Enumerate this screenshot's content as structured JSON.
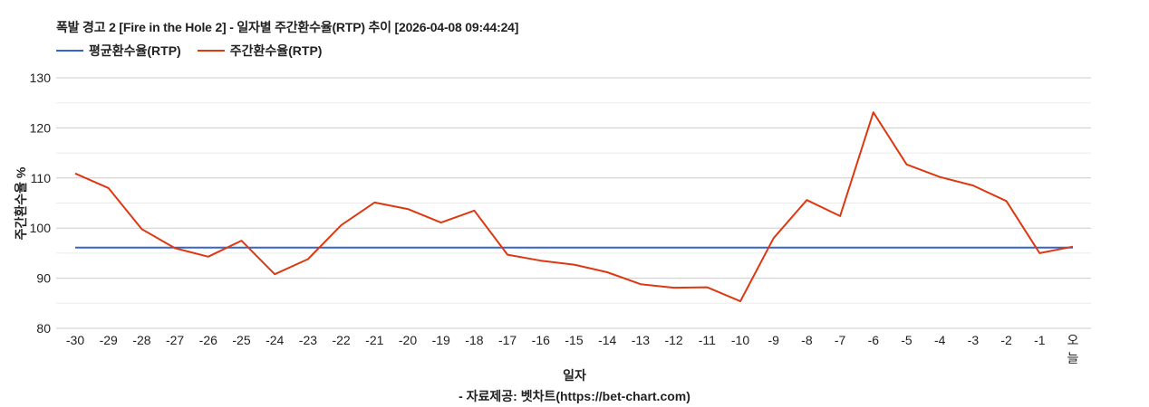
{
  "title": "폭발 경고 2 [Fire in the Hole 2] - 일자별 주간환수율(RTP) 추이 [2026-04-08 09:44:24]",
  "legend": [
    {
      "label": "평균환수율(RTP)",
      "color": "#3366cc"
    },
    {
      "label": "주간환수율(RTP)",
      "color": "#dc3912"
    }
  ],
  "axes": {
    "xlabel": "일자",
    "ylabel": "주간환수율 %",
    "source": "- 자료제공: 벳차트(https://bet-chart.com)"
  },
  "chart_data": {
    "type": "line",
    "title": "폭발 경고 2 [Fire in the Hole 2] - 일자별 주간환수율(RTP) 추이 [2026-04-08 09:44:24]",
    "xlabel": "일자",
    "ylabel": "주간환수율 %",
    "ylim": [
      80,
      130
    ],
    "yticks": [
      80,
      90,
      100,
      110,
      120,
      130
    ],
    "grid": true,
    "legend_position": "top",
    "categories": [
      "-30",
      "-29",
      "-28",
      "-27",
      "-26",
      "-25",
      "-24",
      "-23",
      "-22",
      "-21",
      "-20",
      "-19",
      "-18",
      "-17",
      "-16",
      "-15",
      "-14",
      "-13",
      "-12",
      "-11",
      "-10",
      "-9",
      "-8",
      "-7",
      "-6",
      "-5",
      "-4",
      "-3",
      "-2",
      "-1",
      "오늘"
    ],
    "series": [
      {
        "name": "평균환수율(RTP)",
        "color": "#3366cc",
        "values": [
          96.1,
          96.1,
          96.1,
          96.1,
          96.1,
          96.1,
          96.1,
          96.1,
          96.1,
          96.1,
          96.1,
          96.1,
          96.1,
          96.1,
          96.1,
          96.1,
          96.1,
          96.1,
          96.1,
          96.1,
          96.1,
          96.1,
          96.1,
          96.1,
          96.1,
          96.1,
          96.1,
          96.1,
          96.1,
          96.1,
          96.1
        ]
      },
      {
        "name": "주간환수율(RTP)",
        "color": "#dc3912",
        "values": [
          110.9,
          108.0,
          99.8,
          96.0,
          94.3,
          97.5,
          90.8,
          93.8,
          100.6,
          105.1,
          103.8,
          101.1,
          103.5,
          94.7,
          93.5,
          92.7,
          91.2,
          88.8,
          88.1,
          88.2,
          85.4,
          98.0,
          105.6,
          102.4,
          123.1,
          112.7,
          110.2,
          108.5,
          105.4,
          95.0,
          96.3
        ]
      }
    ]
  }
}
